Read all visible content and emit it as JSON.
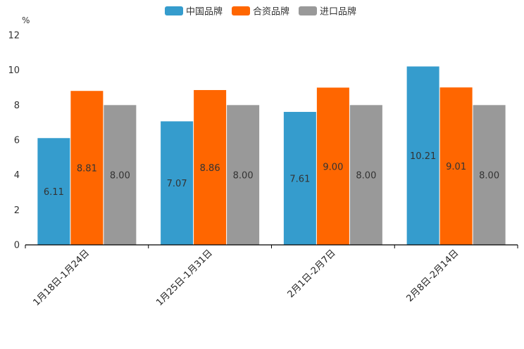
{
  "chart_data": {
    "type": "bar",
    "title": "",
    "unit": "%",
    "xlabel": "",
    "ylabel": "%",
    "ylim": [
      0,
      12
    ],
    "yticks": [
      0,
      2,
      4,
      6,
      8,
      10,
      12
    ],
    "grid": false,
    "legend_position": "top-center",
    "categories": [
      "1月18日-1月24日",
      "1月25日-1月31日",
      "2月1日-2月7日",
      "2月8日-2月14日"
    ],
    "series": [
      {
        "name": "中国品牌",
        "color": "#359ccd",
        "values": [
          6.11,
          7.07,
          7.61,
          10.21
        ]
      },
      {
        "name": "合资品牌",
        "color": "#ff6600",
        "values": [
          8.81,
          8.86,
          9.0,
          9.01
        ]
      },
      {
        "name": "进口品牌",
        "color": "#999999",
        "values": [
          8.0,
          8.0,
          8.0,
          8.0
        ]
      }
    ]
  }
}
